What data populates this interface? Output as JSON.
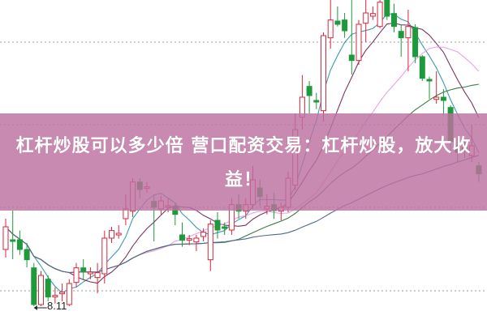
{
  "banner": {
    "title": "杠杆炒股可以多少倍 营口配资交易：杠杆炒股，放大收益！"
  },
  "chart_data": {
    "type": "candlestick",
    "title": "",
    "xlabel": "",
    "ylabel": "",
    "ylim": [
      7.78,
      13.78
    ],
    "grid": "horizontal dotted",
    "annotations": [
      {
        "text": "8.11",
        "marks": "period low",
        "arrow": "left"
      }
    ],
    "colors": {
      "up": "#d7263d",
      "down": "#1e9a3c",
      "ma": [
        "#3b9cb0",
        "#7b3565",
        "#e9a3e3",
        "#3f7a45",
        "#4f6a8a"
      ]
    },
    "moving_averages": [
      5,
      10,
      20,
      30,
      60
    ],
    "candles": [
      [
        9.16,
        9.58,
        9.73,
        9.01
      ],
      [
        9.34,
        9.31,
        9.88,
        8.98
      ],
      [
        9.34,
        9.16,
        9.51,
        9.06
      ],
      [
        9.16,
        8.97,
        9.28,
        8.83
      ],
      [
        8.82,
        8.14,
        8.91,
        8.11
      ],
      [
        8.14,
        8.68,
        8.76,
        8.11
      ],
      [
        8.61,
        8.28,
        8.68,
        8.2
      ],
      [
        8.28,
        8.31,
        8.46,
        8.16
      ],
      [
        8.34,
        8.37,
        8.53,
        8.2
      ],
      [
        8.14,
        8.53,
        8.61,
        8.11
      ],
      [
        8.55,
        8.82,
        8.91,
        8.46
      ],
      [
        8.82,
        8.76,
        8.98,
        8.61
      ],
      [
        8.71,
        8.74,
        8.83,
        8.61
      ],
      [
        8.64,
        8.73,
        8.91,
        8.35
      ],
      [
        8.71,
        9.37,
        9.51,
        8.53
      ],
      [
        9.37,
        9.51,
        9.58,
        9.28
      ],
      [
        9.43,
        9.46,
        9.61,
        9.36
      ],
      [
        9.73,
        9.91,
        10.18,
        9.61
      ],
      [
        9.87,
        10.41,
        10.48,
        9.76
      ],
      [
        10.41,
        10.27,
        10.48,
        10.11
      ],
      [
        10.29,
        10.32,
        10.41,
        10.21
      ],
      [
        10.05,
        9.94,
        10.18,
        9.31
      ],
      [
        9.91,
        10.06,
        10.15,
        9.81
      ],
      [
        9.94,
        9.97,
        10.11,
        9.85
      ],
      [
        9.96,
        9.81,
        10.03,
        9.61
      ],
      [
        9.43,
        9.33,
        9.66,
        9.21
      ],
      [
        9.33,
        9.36,
        9.43,
        9.24
      ],
      [
        9.3,
        9.37,
        9.43,
        9.13
      ],
      [
        9.4,
        9.48,
        9.55,
        9.31
      ],
      [
        8.97,
        9.63,
        9.7,
        8.76
      ],
      [
        9.7,
        9.52,
        9.85,
        9.36
      ],
      [
        9.58,
        9.55,
        9.66,
        9.43
      ],
      [
        9.52,
        9.99,
        10.11,
        9.43
      ],
      [
        9.99,
        9.87,
        10.18,
        9.73
      ],
      [
        9.87,
        9.99,
        10.11,
        9.73
      ],
      [
        9.99,
        10.45,
        10.71,
        9.91
      ],
      [
        10.3,
        10.14,
        10.45,
        9.96
      ],
      [
        9.91,
        9.96,
        10.18,
        9.81
      ],
      [
        9.99,
        9.88,
        10.21,
        9.73
      ],
      [
        9.87,
        9.94,
        10.03,
        9.7
      ],
      [
        9.94,
        10.48,
        10.6,
        9.85
      ],
      [
        10.35,
        11.38,
        11.68,
        10.26
      ],
      [
        11.61,
        11.98,
        12.39,
        11.38
      ],
      [
        12.18,
        12.01,
        12.28,
        11.68
      ],
      [
        11.92,
        11.89,
        12.06,
        11.76
      ],
      [
        11.73,
        13.12,
        13.18,
        11.53
      ],
      [
        13.08,
        13.41,
        13.78,
        12.88
      ],
      [
        13.39,
        13.33,
        13.66,
        13.29
      ],
      [
        13.41,
        13.21,
        13.54,
        13.08
      ],
      [
        12.76,
        12.66,
        13.78,
        12.4
      ],
      [
        12.66,
        13.33,
        13.41,
        12.58
      ],
      [
        13.35,
        13.54,
        13.78,
        13.0
      ],
      [
        13.48,
        13.53,
        13.66,
        13.41
      ],
      [
        13.29,
        13.74,
        13.78,
        13.26
      ],
      [
        13.78,
        13.48,
        13.78,
        13.41
      ],
      [
        13.53,
        13.29,
        13.71,
        13.18
      ],
      [
        13.2,
        13.08,
        13.33,
        12.73
      ],
      [
        13.08,
        13.29,
        13.6,
        12.46
      ],
      [
        13.27,
        12.73,
        13.33,
        12.61
      ],
      [
        12.73,
        12.33,
        12.76,
        12.28
      ],
      [
        12.31,
        12.28,
        12.36,
        11.95
      ],
      [
        11.94,
        11.98,
        12.46,
        11.86
      ],
      [
        11.98,
        11.92,
        12.13,
        11.65
      ],
      [
        11.79,
        11.16,
        11.83,
        10.93
      ],
      [
        11.08,
        10.96,
        11.23,
        10.78
      ],
      [
        11.05,
        11.01,
        11.2,
        10.86
      ],
      [
        10.9,
        11.08,
        11.46,
        10.78
      ],
      [
        10.71,
        10.56,
        10.78,
        10.41
      ]
    ]
  }
}
